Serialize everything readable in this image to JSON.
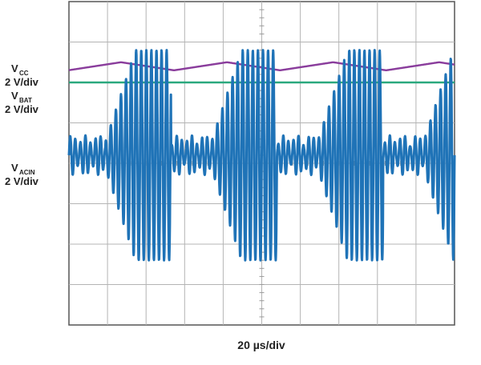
{
  "chart_data": {
    "type": "line",
    "title": "",
    "xlabel": "20 µs/div",
    "ylabel": "",
    "grid": true,
    "x_divisions": 10,
    "y_divisions": 8,
    "traces": [
      {
        "label_main": "V",
        "label_sub": "CC",
        "scale": "2 V/div",
        "color": "#8a3d9c",
        "description_shape": "ripple",
        "ripple_period_div": 2.75,
        "level_div": 6.4,
        "ripple_amplitude_div": 0.1
      },
      {
        "label_main": "V",
        "label_sub": "BAT",
        "scale": "2 V/div",
        "color": "#2aa87e",
        "description_shape": "flat",
        "level_div": 6.0
      },
      {
        "label_main": "V",
        "label_sub": "ACIN",
        "scale": "2 V/div",
        "color": "#1f73b7",
        "description_shape": "burst",
        "burst_period_div": 2.75,
        "burst_on_div": 1.7,
        "center_div": 4.2,
        "burst_amplitude_div": 2.6,
        "idle_amplitude_div": 0.35
      }
    ]
  }
}
